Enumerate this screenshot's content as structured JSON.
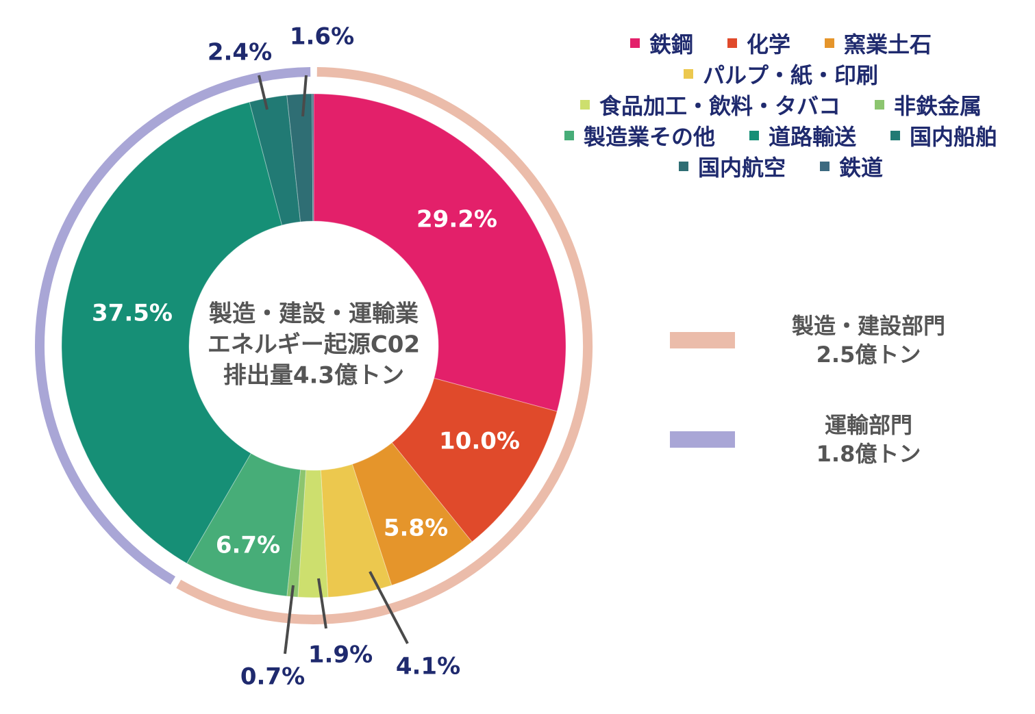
{
  "chart_data": {
    "type": "pie",
    "variant": "donut",
    "center_text": [
      "製造・建設・運輸業",
      "エネルギー起源C02",
      "排出量4.3億トン"
    ],
    "slices": [
      {
        "name": "鉄鋼",
        "value": 29.2,
        "label": "29.2%",
        "color": "#e3206a"
      },
      {
        "name": "化学",
        "value": 10.0,
        "label": "10.0%",
        "color": "#e04a2b"
      },
      {
        "name": "窯業土石",
        "value": 5.8,
        "label": "5.8%",
        "color": "#e5952b"
      },
      {
        "name": "パルプ・紙・印刷",
        "value": 4.1,
        "label": "4.1%",
        "color": "#ecc84e"
      },
      {
        "name": "食品加工・飲料・タバコ",
        "value": 1.9,
        "label": "1.9%",
        "color": "#cddf6e"
      },
      {
        "name": "非鉄金属",
        "value": 0.7,
        "label": "0.7%",
        "color": "#8cc56f"
      },
      {
        "name": "製造業その他",
        "value": 6.7,
        "label": "6.7%",
        "color": "#47ad78"
      },
      {
        "name": "道路輸送",
        "value": 37.5,
        "label": "37.5%",
        "color": "#168f76"
      },
      {
        "name": "国内船舶",
        "value": 2.4,
        "label": "2.4%",
        "color": "#217a74"
      },
      {
        "name": "国内航空",
        "value": 1.6,
        "label": "1.6%",
        "color": "#2f6e74"
      },
      {
        "name": "鉄道",
        "value": 0.1,
        "color": "#3c6a80"
      }
    ],
    "legend_rows": [
      [
        0,
        1,
        2
      ],
      [
        3
      ],
      [
        4,
        5
      ],
      [
        6,
        7,
        8
      ],
      [
        9,
        10
      ]
    ],
    "legend_placement": "top-right",
    "groups": [
      {
        "name": "製造・建設部門",
        "amount": "2.5億トン",
        "from": 0,
        "to": 6,
        "color": "#ebbcaa"
      },
      {
        "name": "運輸部門",
        "amount": "1.8億トン",
        "from": 7,
        "to": 10,
        "color": "#a9a6d6"
      }
    ]
  }
}
